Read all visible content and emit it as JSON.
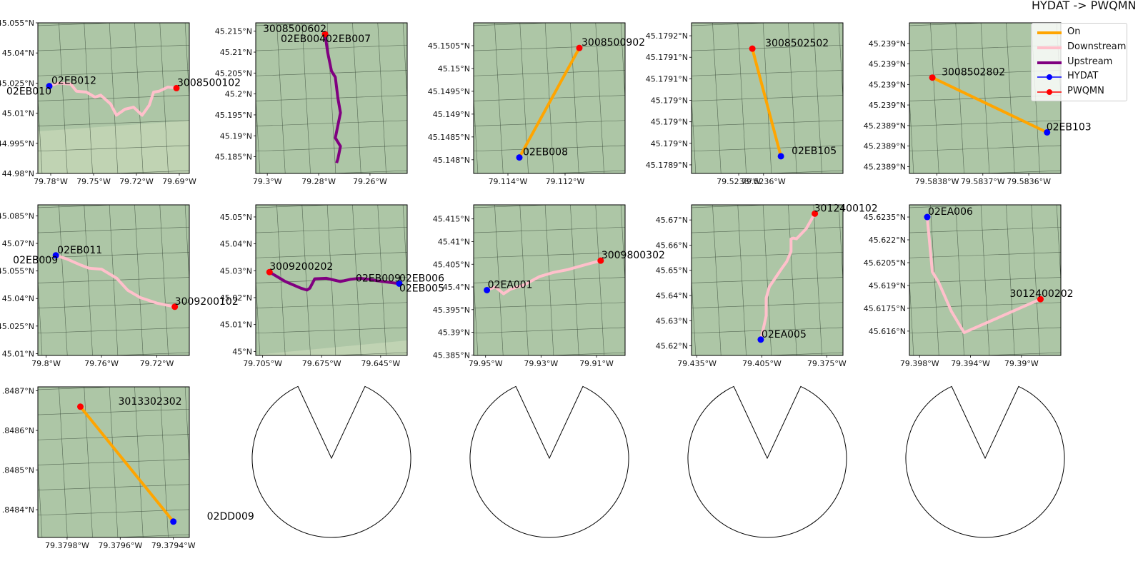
{
  "figure_title": "HYDAT -> PWQMN",
  "legend": [
    {
      "label": "On",
      "kind": "line",
      "color": "#FFA500",
      "width": 4
    },
    {
      "label": "Downstream",
      "kind": "line",
      "color": "#FFC0CB",
      "width": 4
    },
    {
      "label": "Upstream",
      "kind": "line",
      "color": "#800080",
      "width": 4
    },
    {
      "label": "HYDAT",
      "kind": "marker",
      "color": "#0000FF"
    },
    {
      "label": "PWQMN",
      "kind": "marker",
      "color": "#FF0000"
    }
  ],
  "colors": {
    "map_background": "#adc6a6",
    "map_light_area": "#c0d3b3",
    "grid": "#3a4a3a",
    "on": "#FFA500",
    "downstream": "#FFC0CB",
    "upstream": "#800080",
    "hydat": "#0000FF",
    "pwqmn": "#FF0000"
  },
  "chart_data": [
    {
      "type": "map",
      "relation": "Downstream",
      "xlim": [
        -79.789,
        -79.683
      ],
      "ylim": [
        44.98,
        45.055
      ],
      "xticks": [
        {
          "v": -79.78,
          "t": "79.78°W"
        },
        {
          "v": -79.75,
          "t": "79.75°W"
        },
        {
          "v": -79.72,
          "t": "79.72°W"
        },
        {
          "v": -79.69,
          "t": "79.69°W"
        }
      ],
      "yticks": [
        {
          "v": 44.98,
          "t": "44.98°N"
        },
        {
          "v": 44.995,
          "t": "44.995°N"
        },
        {
          "v": 45.01,
          "t": "45.01°N"
        },
        {
          "v": 45.025,
          "t": "45.025°N"
        },
        {
          "v": 45.04,
          "t": "45.04°N"
        },
        {
          "v": 45.055,
          "t": "45.055°N"
        }
      ],
      "path": [
        [
          -79.781,
          45.0235
        ],
        [
          -79.775,
          45.025
        ],
        [
          -79.766,
          45.0245
        ],
        [
          -79.762,
          45.021
        ],
        [
          -79.755,
          45.0205
        ],
        [
          -79.749,
          45.018
        ],
        [
          -79.745,
          45.019
        ],
        [
          -79.738,
          45.0145
        ],
        [
          -79.734,
          45.009
        ],
        [
          -79.728,
          45.012
        ],
        [
          -79.722,
          45.013
        ],
        [
          -79.716,
          45.009
        ],
        [
          -79.711,
          45.014
        ],
        [
          -79.708,
          45.0205
        ],
        [
          -79.704,
          45.021
        ],
        [
          -79.698,
          45.023
        ],
        [
          -79.692,
          45.0225
        ]
      ],
      "hydat": [
        {
          "lon": -79.781,
          "lat": 45.0235,
          "labels": [
            "02EB012",
            "02EB010"
          ]
        }
      ],
      "pwqmn": [
        {
          "lon": -79.692,
          "lat": 45.0225,
          "labels": [
            "3008500102"
          ]
        }
      ]
    },
    {
      "type": "map",
      "relation": "Upstream",
      "xlim": [
        -79.3045,
        -79.2455
      ],
      "ylim": [
        45.181,
        45.217
      ],
      "xticks": [
        {
          "v": -79.3,
          "t": "79.3°W"
        },
        {
          "v": -79.28,
          "t": "79.28°W"
        },
        {
          "v": -79.26,
          "t": "79.26°W"
        }
      ],
      "yticks": [
        {
          "v": 45.185,
          "t": "45.185°N"
        },
        {
          "v": 45.19,
          "t": "45.19°N"
        },
        {
          "v": 45.195,
          "t": "45.195°N"
        },
        {
          "v": 45.2,
          "t": "45.2°N"
        },
        {
          "v": 45.205,
          "t": "45.205°N"
        },
        {
          "v": 45.21,
          "t": "45.21°N"
        },
        {
          "v": 45.215,
          "t": "45.215°N"
        }
      ],
      "path": [
        [
          -79.2775,
          45.2143
        ],
        [
          -79.2765,
          45.21
        ],
        [
          -79.275,
          45.2055
        ],
        [
          -79.2735,
          45.204
        ],
        [
          -79.2725,
          45.199
        ],
        [
          -79.2715,
          45.1955
        ],
        [
          -79.2725,
          45.1925
        ],
        [
          -79.2735,
          45.1895
        ],
        [
          -79.2715,
          45.1875
        ],
        [
          -79.2725,
          45.1845
        ],
        [
          -79.273,
          45.1835
        ]
      ],
      "hydat": [],
      "pwqmn": [
        {
          "lon": -79.2775,
          "lat": 45.2143,
          "labels": [
            "3008500602",
            "02EB004",
            "02EB007"
          ]
        }
      ]
    },
    {
      "type": "map",
      "relation": "On",
      "xlim": [
        -79.1152,
        -79.1099
      ],
      "ylim": [
        45.1477,
        45.151
      ],
      "xticks": [
        {
          "v": -79.114,
          "t": "79.114°W"
        },
        {
          "v": -79.112,
          "t": "79.112°W"
        }
      ],
      "yticks": [
        {
          "v": 45.148,
          "t": "45.148°N"
        },
        {
          "v": 45.1485,
          "t": "45.1485°N"
        },
        {
          "v": 45.149,
          "t": "45.149°N"
        },
        {
          "v": 45.1495,
          "t": "45.1495°N"
        },
        {
          "v": 45.15,
          "t": "45.15°N"
        },
        {
          "v": 45.1505,
          "t": "45.1505°N"
        }
      ],
      "path": [
        [
          -79.1136,
          45.14805
        ],
        [
          -79.1115,
          45.15045
        ]
      ],
      "hydat": [
        {
          "lon": -79.1136,
          "lat": 45.14805,
          "labels": [
            "02EB008"
          ]
        }
      ],
      "pwqmn": [
        {
          "lon": -79.1115,
          "lat": 45.15045,
          "labels": [
            "3008500902"
          ]
        }
      ]
    },
    {
      "type": "map",
      "relation": "On",
      "xlim": [
        -79.52418,
        -79.52296
      ],
      "ylim": [
        45.17888,
        45.17923
      ],
      "xticks": [
        {
          "v": -79.5238,
          "t": "79.5238°W"
        },
        {
          "v": -79.5236,
          "t": "79.5236°W"
        }
      ],
      "yticks": [
        {
          "v": 45.1789,
          "t": "45.1789°N"
        },
        {
          "v": 45.17895,
          "t": "45.179°N"
        },
        {
          "v": 45.179,
          "t": "45.179°N"
        },
        {
          "v": 45.17905,
          "t": "45.179°N"
        },
        {
          "v": 45.1791,
          "t": "45.1791°N"
        },
        {
          "v": 45.17915,
          "t": "45.1791°N"
        },
        {
          "v": 45.1792,
          "t": "45.1792°N"
        }
      ],
      "path": [
        [
          -79.52369,
          45.17917
        ],
        [
          -79.52346,
          45.17892
        ]
      ],
      "hydat": [
        {
          "lon": -79.52346,
          "lat": 45.17892,
          "labels": [
            "02EB105"
          ]
        }
      ],
      "pwqmn": [
        {
          "lon": -79.52369,
          "lat": 45.17917,
          "labels": [
            "3008502502"
          ]
        }
      ]
    },
    {
      "type": "map",
      "relation": "On",
      "xlim": [
        -79.58386,
        -79.58353
      ],
      "ylim": [
        45.23887,
        45.23909
      ],
      "xticks": [
        {
          "v": -79.5838,
          "t": "79.5838°W"
        },
        {
          "v": -79.5837,
          "t": "79.5837°W"
        },
        {
          "v": -79.5836,
          "t": "79.5836°W"
        }
      ],
      "yticks": [
        {
          "v": 45.23888,
          "t": "45.2389°N"
        },
        {
          "v": 45.23891,
          "t": "45.2389°N"
        },
        {
          "v": 45.23894,
          "t": "45.2389°N"
        },
        {
          "v": 45.23897,
          "t": "45.239°N"
        },
        {
          "v": 45.239,
          "t": "45.239°N"
        },
        {
          "v": 45.23903,
          "t": "45.239°N"
        },
        {
          "v": 45.23906,
          "t": "45.239°N"
        }
      ],
      "path": [
        [
          -79.58381,
          45.23901
        ],
        [
          -79.58356,
          45.23893
        ]
      ],
      "hydat": [
        {
          "lon": -79.58356,
          "lat": 45.23893,
          "labels": [
            "02EB103"
          ]
        }
      ],
      "pwqmn": [
        {
          "lon": -79.58381,
          "lat": 45.23901,
          "labels": [
            "3008502802"
          ]
        }
      ]
    },
    {
      "type": "map",
      "relation": "Downstream",
      "xlim": [
        -79.806,
        -79.6965
      ],
      "ylim": [
        45.009,
        45.091
      ],
      "xticks": [
        {
          "v": -79.8,
          "t": "79.8°W"
        },
        {
          "v": -79.76,
          "t": "79.76°W"
        },
        {
          "v": -79.72,
          "t": "79.72°W"
        }
      ],
      "yticks": [
        {
          "v": 45.01,
          "t": "45.01°N"
        },
        {
          "v": 45.025,
          "t": "45.025°N"
        },
        {
          "v": 45.04,
          "t": "45.04°N"
        },
        {
          "v": 45.055,
          "t": "45.055°N"
        },
        {
          "v": 45.07,
          "t": "45.07°N"
        },
        {
          "v": 45.085,
          "t": "45.085°N"
        }
      ],
      "path": [
        [
          -79.793,
          45.0635
        ],
        [
          -79.785,
          45.0615
        ],
        [
          -79.776,
          45.0585
        ],
        [
          -79.769,
          45.0565
        ],
        [
          -79.76,
          45.056
        ],
        [
          -79.749,
          45.051
        ],
        [
          -79.741,
          45.0445
        ],
        [
          -79.732,
          45.0405
        ],
        [
          -79.72,
          45.0375
        ],
        [
          -79.707,
          45.0355
        ]
      ],
      "hydat": [
        {
          "lon": -79.793,
          "lat": 45.0635,
          "labels": [
            "02EB011",
            "02EB009"
          ]
        }
      ],
      "pwqmn": [
        {
          "lon": -79.707,
          "lat": 45.0355,
          "labels": [
            "3009200102"
          ]
        }
      ]
    },
    {
      "type": "map",
      "relation": "Upstream",
      "xlim": [
        -79.7085,
        -79.6315
      ],
      "ylim": [
        44.9985,
        45.0545
      ],
      "xticks": [
        {
          "v": -79.705,
          "t": "79.705°W"
        },
        {
          "v": -79.675,
          "t": "79.675°W"
        },
        {
          "v": -79.645,
          "t": "79.645°W"
        }
      ],
      "yticks": [
        {
          "v": 45.0,
          "t": "45°N"
        },
        {
          "v": 45.01,
          "t": "45.01°N"
        },
        {
          "v": 45.02,
          "t": "45.02°N"
        },
        {
          "v": 45.03,
          "t": "45.03°N"
        },
        {
          "v": 45.04,
          "t": "45.04°N"
        },
        {
          "v": 45.05,
          "t": "45.05°N"
        }
      ],
      "path": [
        [
          -79.7015,
          45.0295
        ],
        [
          -79.6935,
          45.026
        ],
        [
          -79.6855,
          45.0235
        ],
        [
          -79.6825,
          45.0228
        ],
        [
          -79.681,
          45.0235
        ],
        [
          -79.6785,
          45.027
        ],
        [
          -79.6725,
          45.0272
        ],
        [
          -79.6685,
          45.0265
        ],
        [
          -79.6655,
          45.026
        ],
        [
          -79.6605,
          45.0268
        ],
        [
          -79.6555,
          45.0272
        ],
        [
          -79.6505,
          45.0268
        ],
        [
          -79.647,
          45.0263
        ],
        [
          -79.6355,
          45.0252
        ]
      ],
      "hydat": [
        {
          "lon": -79.6355,
          "lat": 45.0252,
          "labels": [
            "02EB009",
            "02EB006",
            "02EB005"
          ]
        }
      ],
      "pwqmn": [
        {
          "lon": -79.7015,
          "lat": 45.0295,
          "labels": [
            "3009200202"
          ]
        }
      ]
    },
    {
      "type": "map",
      "relation": "Downstream",
      "xlim": [
        -79.9543,
        -79.8997
      ],
      "ylim": [
        45.3849,
        45.4181
      ],
      "xticks": [
        {
          "v": -79.95,
          "t": "79.95°W"
        },
        {
          "v": -79.93,
          "t": "79.93°W"
        },
        {
          "v": -79.91,
          "t": "79.91°W"
        }
      ],
      "yticks": [
        {
          "v": 45.385,
          "t": "45.385°N"
        },
        {
          "v": 45.39,
          "t": "45.39°N"
        },
        {
          "v": 45.395,
          "t": "45.395°N"
        },
        {
          "v": 45.4,
          "t": "45.4°N"
        },
        {
          "v": 45.405,
          "t": "45.405°N"
        },
        {
          "v": 45.41,
          "t": "45.41°N"
        },
        {
          "v": 45.415,
          "t": "45.415°N"
        }
      ],
      "path": [
        [
          -79.9495,
          45.3993
        ],
        [
          -79.9465,
          45.4
        ],
        [
          -79.9435,
          45.3985
        ],
        [
          -79.941,
          45.3995
        ],
        [
          -79.936,
          45.4005
        ],
        [
          -79.9305,
          45.4023
        ],
        [
          -79.9255,
          45.4032
        ],
        [
          -79.9205,
          45.4038
        ],
        [
          -79.9135,
          45.405
        ],
        [
          -79.9085,
          45.4058
        ]
      ],
      "hydat": [
        {
          "lon": -79.9495,
          "lat": 45.3993,
          "labels": [
            "02EA001"
          ]
        }
      ],
      "pwqmn": [
        {
          "lon": -79.9085,
          "lat": 45.4058,
          "labels": [
            "3009800302"
          ]
        }
      ]
    },
    {
      "type": "map",
      "relation": "Downstream",
      "xlim": [
        -79.4375,
        -79.3675
      ],
      "ylim": [
        45.6162,
        45.676
      ],
      "xticks": [
        {
          "v": -79.435,
          "t": "79.435°W"
        },
        {
          "v": -79.405,
          "t": "79.405°W"
        },
        {
          "v": -79.375,
          "t": "79.375°W"
        }
      ],
      "yticks": [
        {
          "v": 45.62,
          "t": "45.62°N"
        },
        {
          "v": 45.63,
          "t": "45.63°N"
        },
        {
          "v": 45.64,
          "t": "45.64°N"
        },
        {
          "v": 45.65,
          "t": "45.65°N"
        },
        {
          "v": 45.66,
          "t": "45.66°N"
        },
        {
          "v": 45.67,
          "t": "45.67°N"
        }
      ],
      "path": [
        [
          -79.4055,
          45.6225
        ],
        [
          -79.4045,
          45.626
        ],
        [
          -79.403,
          45.632
        ],
        [
          -79.403,
          45.639
        ],
        [
          -79.4015,
          45.6435
        ],
        [
          -79.396,
          45.6505
        ],
        [
          -79.3935,
          45.6535
        ],
        [
          -79.3915,
          45.6575
        ],
        [
          -79.3915,
          45.6625
        ],
        [
          -79.3905,
          45.6628
        ],
        [
          -79.389,
          45.6625
        ],
        [
          -79.3845,
          45.6665
        ],
        [
          -79.3805,
          45.6725
        ]
      ],
      "hydat": [
        {
          "lon": -79.4055,
          "lat": 45.6225,
          "labels": [
            "02EA005"
          ]
        }
      ],
      "pwqmn": [
        {
          "lon": -79.3805,
          "lat": 45.6725,
          "labels": [
            "3012400102"
          ]
        }
      ]
    },
    {
      "type": "map",
      "relation": "Downstream",
      "xlim": [
        -79.3988,
        -79.3869
      ],
      "ylim": [
        45.6144,
        45.6243
      ],
      "xticks": [
        {
          "v": -79.398,
          "t": "79.398°W"
        },
        {
          "v": -79.394,
          "t": "79.394°W"
        },
        {
          "v": -79.39,
          "t": "79.39°W"
        }
      ],
      "yticks": [
        {
          "v": 45.616,
          "t": "45.616°N"
        },
        {
          "v": 45.6175,
          "t": "45.6175°N"
        },
        {
          "v": 45.619,
          "t": "45.619°N"
        },
        {
          "v": 45.6205,
          "t": "45.6205°N"
        },
        {
          "v": 45.622,
          "t": "45.622°N"
        },
        {
          "v": 45.6235,
          "t": "45.6235°N"
        }
      ],
      "path": [
        [
          -79.3974,
          45.6235
        ],
        [
          -79.397,
          45.6199
        ],
        [
          -79.3965,
          45.6192
        ],
        [
          -79.3955,
          45.6173
        ],
        [
          -79.3945,
          45.6159
        ],
        [
          -79.3885,
          45.6181
        ]
      ],
      "hydat": [
        {
          "lon": -79.3974,
          "lat": 45.6235,
          "labels": [
            "02EA006"
          ]
        }
      ],
      "pwqmn": [
        {
          "lon": -79.3885,
          "lat": 45.6181,
          "labels": [
            "3012400202"
          ]
        }
      ]
    },
    {
      "type": "map",
      "relation": "On",
      "xlim": [
        -79.37991,
        -79.37934
      ],
      "ylim": [
        45.84833,
        45.84871
      ],
      "xticks": [
        {
          "v": -79.3798,
          "t": "79.3798°W"
        },
        {
          "v": -79.3796,
          "t": "79.3796°W"
        },
        {
          "v": -79.3794,
          "t": "79.3794°W"
        }
      ],
      "yticks": [
        {
          "v": 45.8484,
          "t": ".8484°N"
        },
        {
          "v": 45.8485,
          "t": ".8485°N"
        },
        {
          "v": 45.8486,
          "t": ".8486°N"
        },
        {
          "v": 45.8487,
          "t": ".8487°N"
        }
      ],
      "path": [
        [
          -79.37975,
          45.84866
        ],
        [
          -79.3794,
          45.84837
        ]
      ],
      "hydat": [
        {
          "lon": -79.3794,
          "lat": 45.84837,
          "labels": [
            "02DD009"
          ]
        }
      ],
      "pwqmn": [
        {
          "lon": -79.37975,
          "lat": 45.84866,
          "labels": [
            "3013302302"
          ]
        }
      ]
    },
    {
      "type": "empty"
    },
    {
      "type": "empty"
    },
    {
      "type": "empty"
    },
    {
      "type": "empty"
    }
  ]
}
